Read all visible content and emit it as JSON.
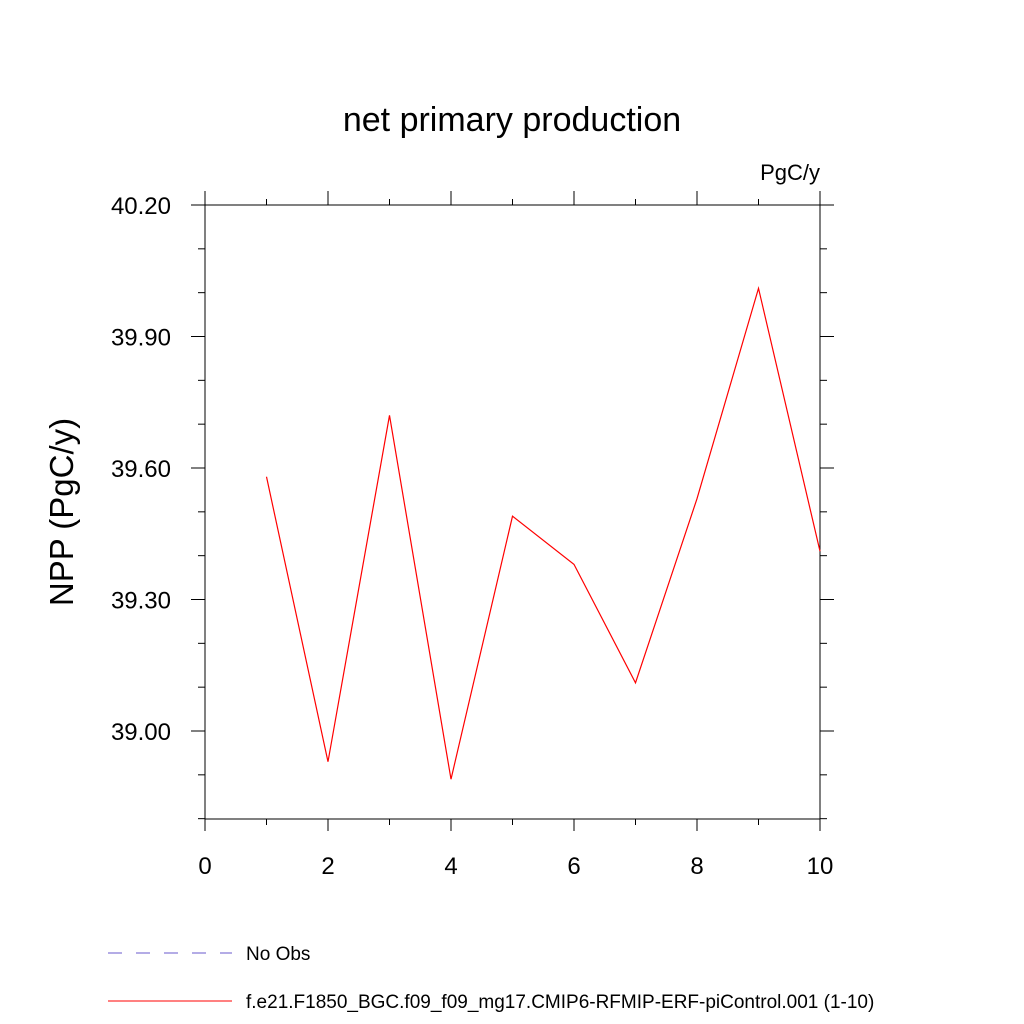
{
  "chart_data": {
    "type": "line",
    "title": "net primary production",
    "units_label": "PgC/y",
    "xlabel": "",
    "ylabel": "NPP  (PgC/y)",
    "xlim": [
      0,
      10
    ],
    "ylim": [
      38.8,
      40.24
    ],
    "x_ticks": [
      0,
      2,
      4,
      6,
      8,
      10
    ],
    "x_tick_labels": [
      "0",
      "2",
      "4",
      "6",
      "8",
      "10"
    ],
    "y_ticks": [
      39.0,
      39.3,
      39.6,
      39.9,
      40.2
    ],
    "y_tick_labels": [
      "39.00",
      "39.30",
      "39.60",
      "39.90",
      "40.20"
    ],
    "grid": false,
    "legend_position": "bottom",
    "series": [
      {
        "name": "No Obs",
        "color": "#6a5acd",
        "style": "dashed",
        "x": [],
        "y": []
      },
      {
        "name": "f.e21.F1850_BGC.f09_f09_mg17.CMIP6-RFMIP-ERF-piControl.001 (1-10)",
        "color": "#ff0000",
        "style": "solid",
        "x": [
          1,
          2,
          3,
          4,
          5,
          6,
          7,
          8,
          9,
          10
        ],
        "y": [
          39.58,
          38.93,
          39.72,
          38.89,
          39.49,
          39.38,
          39.11,
          39.53,
          40.01,
          39.41
        ]
      }
    ]
  }
}
